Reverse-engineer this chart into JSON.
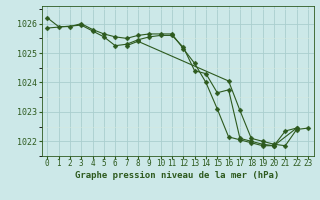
{
  "title": "Graphe pression niveau de la mer (hPa)",
  "x_hours": [
    0,
    1,
    2,
    3,
    4,
    5,
    6,
    7,
    8,
    9,
    10,
    11,
    12,
    13,
    14,
    15,
    16,
    17,
    18,
    19,
    20,
    21,
    22,
    23
  ],
  "line1": [
    1026.2,
    1025.9,
    1025.9,
    1026.0,
    1025.8,
    1025.65,
    1025.55,
    1025.5,
    1025.6,
    1025.65,
    1025.65,
    1025.65,
    1025.15,
    1024.65,
    1024.0,
    1023.1,
    1022.15,
    1022.05,
    1021.95,
    1021.85,
    1021.85,
    1022.35,
    1022.45,
    null
  ],
  "line2": [
    1025.85,
    null,
    null,
    1025.95,
    1025.75,
    1025.55,
    1025.25,
    1025.3,
    1025.45,
    1025.55,
    1025.6,
    1025.6,
    1025.2,
    1024.4,
    1024.3,
    1023.65,
    1023.75,
    1022.1,
    1022.0,
    1021.9,
    1021.85,
    null,
    1022.45,
    null
  ],
  "line3": [
    null,
    null,
    null,
    null,
    null,
    null,
    null,
    1025.25,
    1025.4,
    null,
    null,
    null,
    null,
    null,
    null,
    null,
    1024.05,
    1023.05,
    1022.1,
    1022.0,
    1021.9,
    1021.85,
    1022.4,
    1022.45
  ],
  "bg_color": "#cce8e8",
  "grid_color_major": "#aacece",
  "line_color": "#2d5a1e",
  "marker": "D",
  "marker_size": 2.5,
  "linewidth": 0.8,
  "ylim": [
    1021.5,
    1026.6
  ],
  "xlim": [
    -0.5,
    23.5
  ],
  "yticks": [
    1022,
    1023,
    1024,
    1025,
    1026
  ],
  "xtick_fontsize": 5.5,
  "ytick_fontsize": 6,
  "title_fontsize": 6.5
}
